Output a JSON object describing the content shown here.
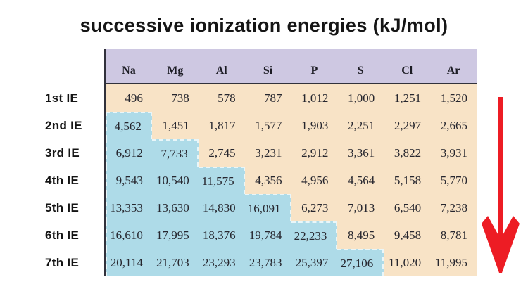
{
  "title": "successive ionization energies (kJ/mol)",
  "chart_data": {
    "type": "table",
    "title": "successive ionization energies (kJ/mol)",
    "columns": [
      "Na",
      "Mg",
      "Al",
      "Si",
      "P",
      "S",
      "Cl",
      "Ar"
    ],
    "rows": [
      "1st IE",
      "2nd IE",
      "3rd IE",
      "4th IE",
      "5th IE",
      "6th IE",
      "7th IE"
    ],
    "values": [
      [
        "496",
        "738",
        "578",
        "787",
        "1,012",
        "1,000",
        "1,251",
        "1,520"
      ],
      [
        "4,562",
        "1,451",
        "1,817",
        "1,577",
        "1,903",
        "2,251",
        "2,297",
        "2,665"
      ],
      [
        "6,912",
        "7,733",
        "2,745",
        "3,231",
        "2,912",
        "3,361",
        "3,822",
        "3,931"
      ],
      [
        "9,543",
        "10,540",
        "11,575",
        "4,356",
        "4,956",
        "4,564",
        "5,158",
        "5,770"
      ],
      [
        "13,353",
        "13,630",
        "14,830",
        "16,091",
        "6,273",
        "7,013",
        "6,540",
        "7,238"
      ],
      [
        "16,610",
        "17,995",
        "18,376",
        "19,784",
        "22,233",
        "8,495",
        "9,458",
        "8,781"
      ],
      [
        "20,114",
        "21,703",
        "23,293",
        "23,783",
        "25,397",
        "27,106",
        "11,020",
        "11,995"
      ]
    ],
    "highlight_blue_start_row_by_column": [
      1,
      2,
      3,
      4,
      5,
      6,
      null,
      null
    ]
  },
  "colors": {
    "header_bg": "#cec8e2",
    "body_bg": "#f8e3c6",
    "highlight_bg": "#aedbe8",
    "dashed_edge": "#e9f6f9",
    "table_line": "#31313b",
    "text": "#26262e",
    "title_text": "#151515",
    "arrow": "#ed1c24"
  },
  "icons": {
    "arrow": "red-down-arrow"
  }
}
